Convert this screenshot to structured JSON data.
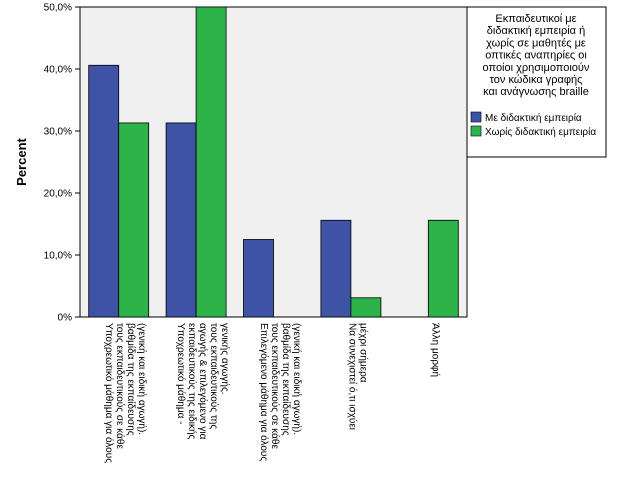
{
  "chart_data": {
    "type": "bar",
    "ylabel": "Percent",
    "xlabel": "",
    "title": "",
    "ylim": [
      0,
      50
    ],
    "yticks": [
      "0%",
      "10,0%",
      "20,0%",
      "30,0%",
      "40,0%",
      "50,0%"
    ],
    "ytick_values": [
      0,
      10,
      20,
      30,
      40,
      50
    ],
    "categories": [
      "Υποχρεωτικό μάθημα για όλους τους εκπαιδευτικούς σε κάθε βαθμίδα της εκπαίδευσης (γενική και ειδική αγωγή).",
      "Υποχρεωτικό μάθημα - εκπαιδευτικούς της ειδικής αγωγής & επιλεγόμενο για τους εκπαιδευτικούς της γενικής αγωγής.",
      "Επιλεγόμενο μάθημα για όλους τους εκπαιδευτικούς σε κάθε βαθμίδα της εκπαίδευσης (γενική και ειδική αγωγή).",
      "Να συνεχιστεί ό,τι ισχύει μέχρι σήμερα",
      "Άλλη μορφή"
    ],
    "series": [
      {
        "name": "Με διδακτική εμπειρία",
        "color": "#3e53a6",
        "values": [
          40.6,
          31.3,
          12.5,
          15.6,
          0
        ]
      },
      {
        "name": "Χωρίς διδακτική εμπειρία",
        "color": "#2db34a",
        "values": [
          31.3,
          50.0,
          0,
          3.1,
          15.6
        ]
      }
    ],
    "legend": {
      "title_lines": [
        "Εκπαιδευτικοί με",
        "διδακτική εμπειρία ή",
        "χωρίς σε μαθητές με",
        "οπτικές αναπηρίες οι",
        "οποίοι χρησιμοποιούν",
        "τον κώδικα γραφής",
        "και ανάγνωσης braille"
      ],
      "placement": "right"
    },
    "grid": false,
    "plot_background": "#f0f0f0"
  }
}
